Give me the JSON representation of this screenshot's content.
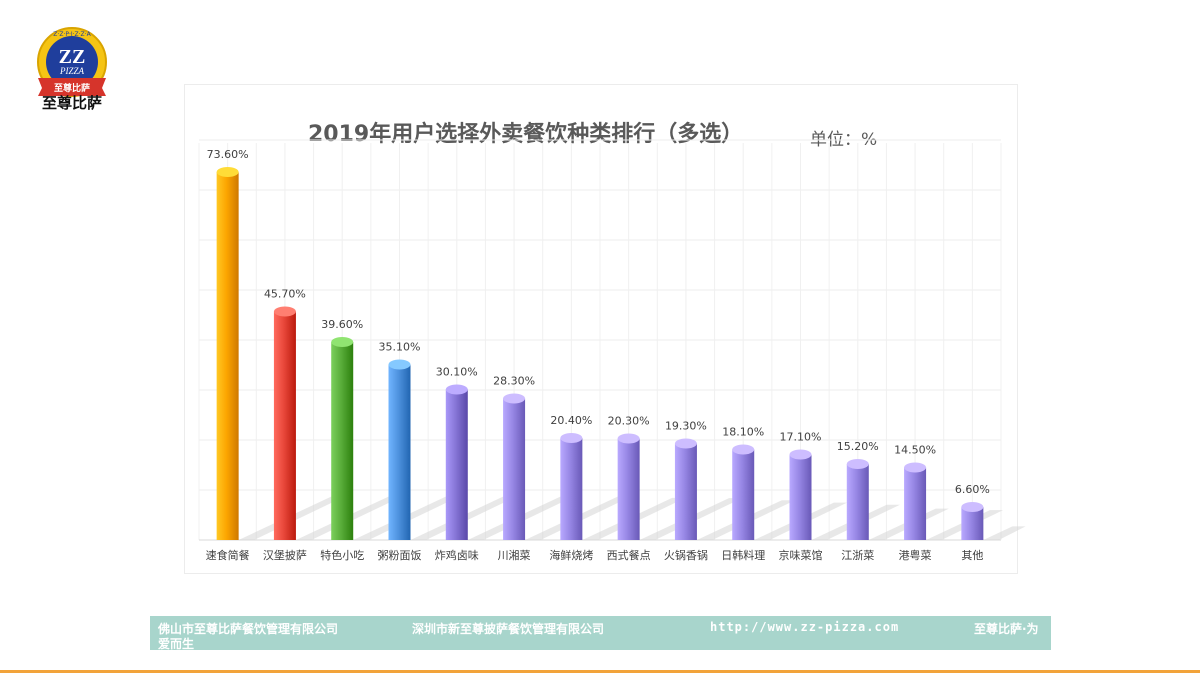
{
  "logo": {
    "text_main": "ZZ",
    "text_sub": "PIZZA",
    "ribbon": "至尊比萨",
    "ring": "Z·Z·P·I·Z·Z·A",
    "name": "至尊比萨"
  },
  "chart_data": {
    "type": "bar",
    "title": "2019年用户选择外卖餐饮种类排行（多选）",
    "unit_label": "单位：%",
    "xlabel": "",
    "ylabel": "",
    "ylim": [
      0,
      80
    ],
    "grid": true,
    "categories": [
      "速食简餐",
      "汉堡披萨",
      "特色小吃",
      "粥粉面饭",
      "炸鸡卤味",
      "川湘菜",
      "海鲜烧烤",
      "西式餐点",
      "火锅香锅",
      "日韩料理",
      "京味菜馆",
      "江浙菜",
      "港粤菜",
      "其他"
    ],
    "values": [
      73.6,
      45.7,
      39.6,
      35.1,
      30.1,
      28.3,
      20.4,
      20.3,
      19.3,
      18.1,
      17.1,
      15.2,
      14.5,
      6.6
    ],
    "value_labels": [
      "73.60%",
      "45.70%",
      "39.60%",
      "35.10%",
      "30.10%",
      "28.30%",
      "20.40%",
      "20.30%",
      "19.30%",
      "18.10%",
      "17.10%",
      "15.20%",
      "14.50%",
      "6.60%"
    ],
    "colors": [
      "#fca500",
      "#e8473a",
      "#59ad3a",
      "#4e92de",
      "#8675d6",
      "#9686e4",
      "#9686e4",
      "#9686e4",
      "#9686e4",
      "#9686e4",
      "#9686e4",
      "#9686e4",
      "#9686e4",
      "#9686e4"
    ]
  },
  "footer": {
    "company1": "佛山市至尊比萨餐饮管理有限公司",
    "company2": "深圳市新至尊披萨餐饮管理有限公司",
    "url": "http://www.zz-pizza.com",
    "slogan1": "至尊比萨·为",
    "slogan2": "爱而生"
  },
  "colors": {
    "footer_bg": "#a8d5cc",
    "accent_line": "#f2a33a"
  }
}
